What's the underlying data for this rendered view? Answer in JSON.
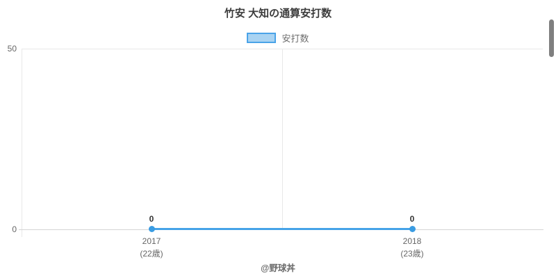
{
  "title": "竹安 大知の通算安打数",
  "legend": {
    "label": "安打数"
  },
  "y_axis": {
    "ticks": [
      "50",
      "0"
    ]
  },
  "x_axis": {
    "items": [
      {
        "year": "2017",
        "age": "(22歳)"
      },
      {
        "year": "2018",
        "age": "(23歳)"
      }
    ]
  },
  "points": [
    {
      "value_label": "0"
    },
    {
      "value_label": "0"
    }
  ],
  "footer": "@野球丼",
  "colors": {
    "line": "#45a3e8",
    "point": "#3a9ce2",
    "legend_fill": "#a9d3f2",
    "legend_border": "#4aa3e8",
    "grid": "#e8e8e8",
    "axis": "#d4d4d4",
    "muted_text": "#666666",
    "title_text": "#3c3c3c",
    "scrollbar": "#7f7f7f"
  },
  "chart_data": {
    "type": "line",
    "title": "竹安 大知の通算安打数",
    "categories": [
      "2017 (22歳)",
      "2018 (23歳)"
    ],
    "series": [
      {
        "name": "安打数",
        "values": [
          0,
          0
        ]
      }
    ],
    "data_labels": [
      "0",
      "0"
    ],
    "ylabel": "",
    "xlabel": "",
    "ylim": [
      0,
      50
    ],
    "yticks": [
      0,
      50
    ],
    "legend_position": "top-center",
    "grid": "top gridline at y=50, single vertical gridline at category boundary",
    "annotation": "@野球丼"
  }
}
